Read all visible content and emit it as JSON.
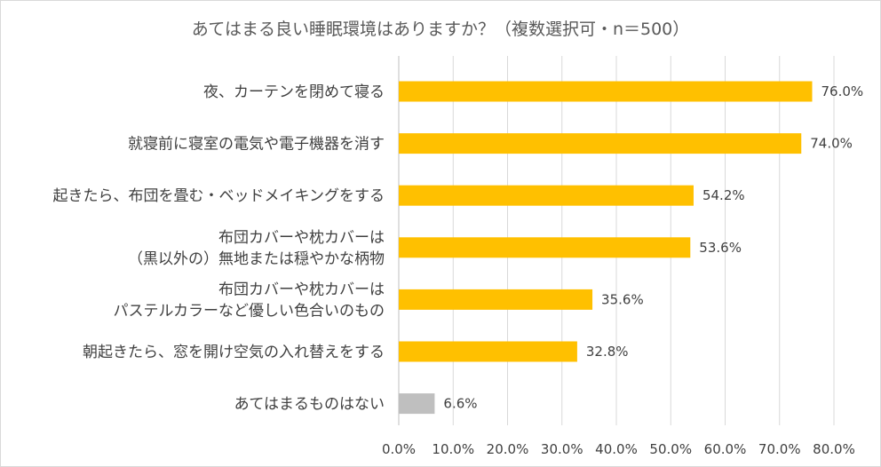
{
  "chart_data": {
    "type": "bar",
    "orientation": "horizontal",
    "title": "あてはまる良い睡眠環境はありますか？（複数選択可・n＝500）",
    "categories": [
      [
        "夜、カーテンを閉めて寝る"
      ],
      [
        "就寝前に寝室の電気や電子機器を消す"
      ],
      [
        "起きたら、布団を畳む・ベッドメイキングをする"
      ],
      [
        "布団カバーや枕カバーは",
        "（黒以外の）無地または穏やかな柄物"
      ],
      [
        "布団カバーや枕カバーは",
        "パステルカラーなど優しい色合いのもの"
      ],
      [
        "朝起きたら、窓を開け空気の入れ替えをする"
      ],
      [
        "あてはまるものはない"
      ]
    ],
    "values": [
      76.0,
      74.0,
      54.2,
      53.6,
      35.6,
      32.8,
      6.6
    ],
    "value_labels": [
      "76.0%",
      "74.0%",
      "54.2%",
      "53.6%",
      "35.6%",
      "32.8%",
      "6.6%"
    ],
    "bar_colors": [
      "#FFC000",
      "#FFC000",
      "#FFC000",
      "#FFC000",
      "#FFC000",
      "#FFC000",
      "#BFBFBF"
    ],
    "xlim": [
      0,
      80
    ],
    "ticks": [
      0,
      10,
      20,
      30,
      40,
      50,
      60,
      70,
      80
    ],
    "tick_labels": [
      "0.0%",
      "10.0%",
      "20.0%",
      "30.0%",
      "40.0%",
      "50.0%",
      "60.0%",
      "70.0%",
      "80.0%"
    ],
    "grid": true,
    "gridline_color": "#D9D9D9",
    "legend": "none"
  }
}
